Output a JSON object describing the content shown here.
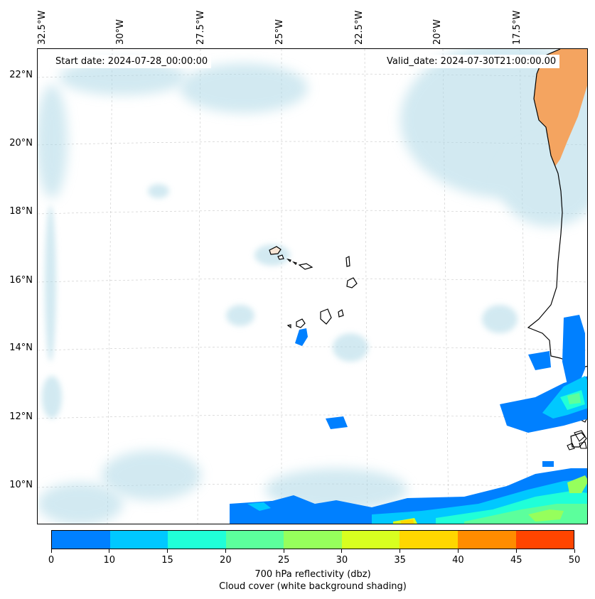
{
  "map": {
    "start_date": "Start date: 2024-07-28_00:00:00",
    "valid_date": "Valid_date: 2024-07-30T21:00:00.00",
    "longitude_labels": [
      "32.5°W",
      "30°W",
      "27.5°W",
      "25°W",
      "22.5°W",
      "20°W",
      "17.5°W"
    ],
    "latitude_labels": [
      "22°N",
      "20°N",
      "18°N",
      "16°N",
      "14°N",
      "12°N",
      "10°N"
    ],
    "colors": {
      "land": "#f4a460",
      "cloud": "#add8e6",
      "coastline": "#000000",
      "gridline": "#c8c8c8"
    }
  },
  "colorbar": {
    "ticks": [
      "0",
      "10",
      "15",
      "20",
      "25",
      "30",
      "35",
      "40",
      "45",
      "50"
    ],
    "colors": [
      "#0080ff",
      "#00c8ff",
      "#20ffd8",
      "#5cff9c",
      "#96ff5c",
      "#d8ff20",
      "#ffd700",
      "#ff8c00",
      "#ff4500"
    ],
    "label_line1": "700 hPa reflectivity (dbz)",
    "label_line2": "Cloud cover (white background shading)"
  }
}
